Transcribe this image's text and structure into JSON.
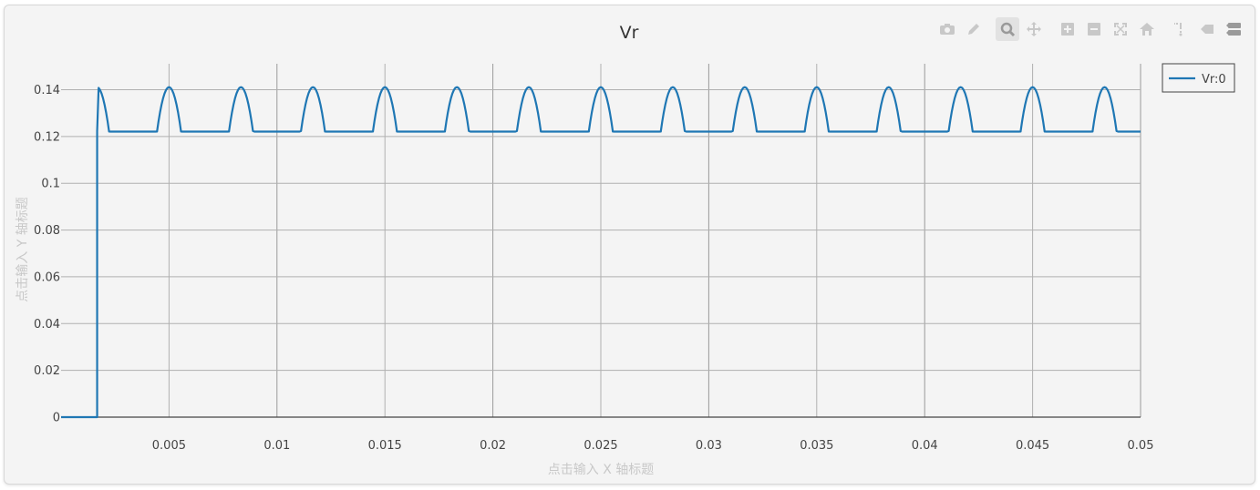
{
  "modebar": {
    "buttons": [
      {
        "name": "camera-icon"
      },
      {
        "name": "pencil-icon"
      },
      {
        "name": "zoom-icon",
        "active": true
      },
      {
        "name": "pan-icon"
      },
      {
        "name": "zoom-in-icon"
      },
      {
        "name": "zoom-out-icon"
      },
      {
        "name": "autoscale-icon"
      },
      {
        "name": "home-icon"
      },
      {
        "name": "spike-lines-icon"
      },
      {
        "name": "hover-closest-icon"
      },
      {
        "name": "hover-compare-icon"
      }
    ]
  },
  "chart_data": {
    "type": "line",
    "title": "Vr",
    "xlabel": "点击输入 X 轴标题",
    "ylabel": "点击输入 Y 轴标题",
    "xlim": [
      0,
      0.05
    ],
    "ylim": [
      -0.005,
      0.0505
    ],
    "x_ticks": [
      0.005,
      0.01,
      0.015,
      0.02,
      0.025,
      0.03,
      0.035,
      0.04,
      0.045,
      0.05
    ],
    "x_tick_labels": [
      "0.005",
      "0.01",
      "0.015",
      "0.02",
      "0.025",
      "0.03",
      "0.035",
      "0.04",
      "0.045",
      "0.05"
    ],
    "y_ticks": [
      0,
      0.02,
      0.04,
      0.06,
      0.08,
      0.1,
      0.12,
      0.14
    ],
    "y_tick_labels": [
      "0",
      "0.02",
      "0.04",
      "0.06",
      "0.08",
      "0.1",
      "0.12",
      "0.14"
    ],
    "grid": true,
    "legend": {
      "position": "top-right",
      "entries": [
        "Vr:0"
      ]
    },
    "series": [
      {
        "name": "Vr:0",
        "color": "#1f77b4",
        "x": [
          0,
          0.00167,
          0.00167,
          0.00333,
          0.005,
          0.00667,
          0.00833,
          0.01,
          0.01167,
          0.01333,
          0.015,
          0.01667,
          0.01833,
          0.02,
          0.02167,
          0.02333,
          0.025,
          0.02667,
          0.02833,
          0.03,
          0.03167,
          0.03333,
          0.035,
          0.03667,
          0.03833,
          0.04,
          0.04167,
          0.04333,
          0.045,
          0.04667,
          0.04833,
          0.05
        ],
        "y": [
          0,
          0,
          0.1222,
          0.1411,
          0.1222,
          0.1411,
          0.1222,
          0.1411,
          0.1222,
          0.1411,
          0.1222,
          0.1411,
          0.1222,
          0.1411,
          0.1222,
          0.1411,
          0.1222,
          0.1411,
          0.1222,
          0.1411,
          0.1222,
          0.1411,
          0.1222,
          0.1411,
          0.1222,
          0.1411,
          0.1222,
          0.1411,
          0.1222,
          0.1411,
          0.1222,
          0.1411
        ]
      }
    ]
  }
}
